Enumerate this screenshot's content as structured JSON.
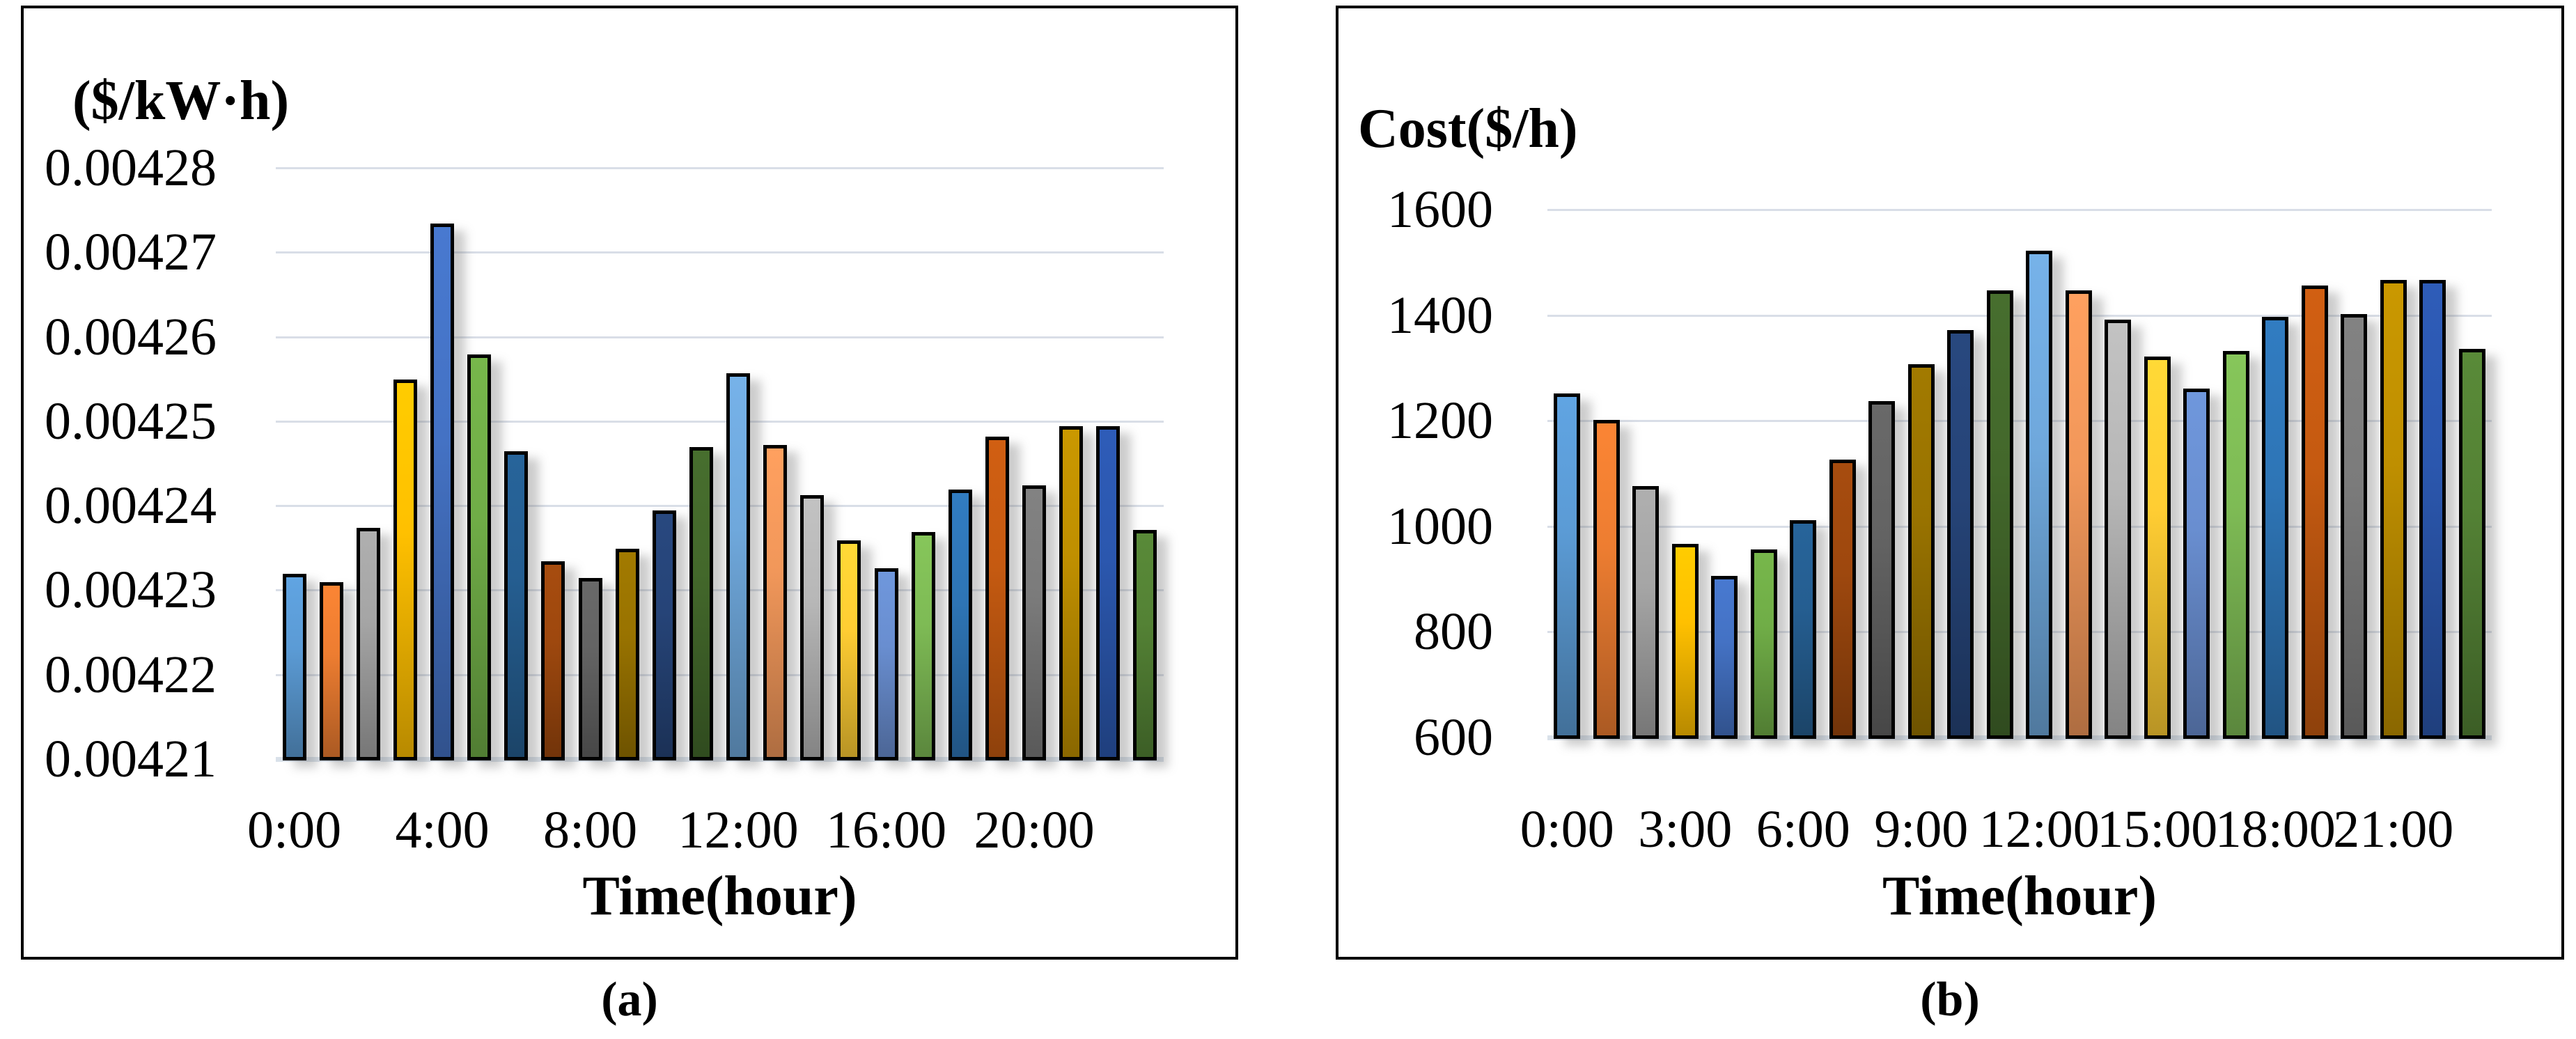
{
  "figure": {
    "caption_a": "(a)",
    "caption_b": "(b)"
  },
  "style": {
    "grid_color": "#d9dee7",
    "axis_line_color": "#d9e1ea",
    "panel_border_color": "#000000",
    "bar_outline_color": "#000000"
  },
  "chart_data": [
    {
      "id": "a",
      "type": "bar",
      "title": "",
      "ylabel": "($/kW·h)",
      "xlabel": "Time(hour)",
      "ylim": [
        0.00421,
        0.00428
      ],
      "y_tick_step": 1e-05,
      "y_tick_labels": [
        "0.00428",
        "0.00427",
        "0.00426",
        "0.00425",
        "0.00424",
        "0.00423",
        "0.00422",
        "0.00421"
      ],
      "x_tick_hours": [
        0,
        4,
        8,
        12,
        16,
        20
      ],
      "x_tick_labels": [
        "0:00",
        "4:00",
        "8:00",
        "12:00",
        "16:00",
        "20:00"
      ],
      "grid": true,
      "legend_position": "none",
      "categories": [
        "0:00",
        "1:00",
        "2:00",
        "3:00",
        "4:00",
        "5:00",
        "6:00",
        "7:00",
        "8:00",
        "9:00",
        "10:00",
        "11:00",
        "12:00",
        "13:00",
        "14:00",
        "15:00",
        "16:00",
        "17:00",
        "18:00",
        "19:00",
        "20:00",
        "21:00",
        "22:00",
        "23:00"
      ],
      "values": [
        0.0042315,
        0.0042305,
        0.004237,
        0.0042545,
        0.004273,
        0.0042575,
        0.004246,
        0.004233,
        0.004231,
        0.0042345,
        0.004239,
        0.0042465,
        0.0042553,
        0.0042468,
        0.0042408,
        0.0042355,
        0.0042322,
        0.0042365,
        0.0042415,
        0.0042478,
        0.004242,
        0.004249,
        0.004249,
        0.0042367
      ],
      "bar_colors": [
        "#5B9BD5",
        "#ED7D31",
        "#A5A5A5",
        "#FFC000",
        "#4472C4",
        "#70AD47",
        "#255E91",
        "#9E480E",
        "#636363",
        "#997300",
        "#264478",
        "#43682B",
        "#6FA8DC",
        "#F1975A",
        "#B7B7B7",
        "#FFCD33",
        "#698ED0",
        "#7EBB55",
        "#2E75B6",
        "#C55A11",
        "#7B7B7B",
        "#BF8F00",
        "#2B57AE",
        "#548235"
      ]
    },
    {
      "id": "b",
      "type": "bar",
      "title": "",
      "ylabel": "Cost($/h)",
      "xlabel": "Time(hour)",
      "ylim": [
        600,
        1600
      ],
      "y_tick_step": 200,
      "y_tick_labels": [
        "1600",
        "1400",
        "1200",
        "1000",
        "800",
        "600"
      ],
      "x_tick_hours": [
        0,
        3,
        6,
        9,
        12,
        15,
        18,
        21
      ],
      "x_tick_labels": [
        "0:00",
        "3:00",
        "6:00",
        "9:00",
        "12:00",
        "15:00",
        "18:00",
        "21:00"
      ],
      "grid": true,
      "legend_position": "none",
      "categories": [
        "0:00",
        "1:00",
        "2:00",
        "3:00",
        "4:00",
        "5:00",
        "6:00",
        "7:00",
        "8:00",
        "9:00",
        "10:00",
        "11:00",
        "12:00",
        "13:00",
        "14:00",
        "15:00",
        "16:00",
        "17:00",
        "18:00",
        "19:00",
        "20:00",
        "21:00",
        "22:00",
        "23:00"
      ],
      "values": [
        1245,
        1195,
        1070,
        960,
        900,
        950,
        1005,
        1120,
        1230,
        1300,
        1365,
        1440,
        1515,
        1440,
        1385,
        1315,
        1255,
        1325,
        1390,
        1450,
        1395,
        1460,
        1460,
        1330
      ],
      "bar_colors": [
        "#5B9BD5",
        "#ED7D31",
        "#A5A5A5",
        "#FFC000",
        "#4472C4",
        "#70AD47",
        "#255E91",
        "#9E480E",
        "#636363",
        "#997300",
        "#264478",
        "#43682B",
        "#6FA8DC",
        "#F1975A",
        "#B7B7B7",
        "#FFCD33",
        "#698ED0",
        "#7EBB55",
        "#2E75B6",
        "#C55A11",
        "#7B7B7B",
        "#BF8F00",
        "#2B57AE",
        "#548235"
      ]
    }
  ]
}
